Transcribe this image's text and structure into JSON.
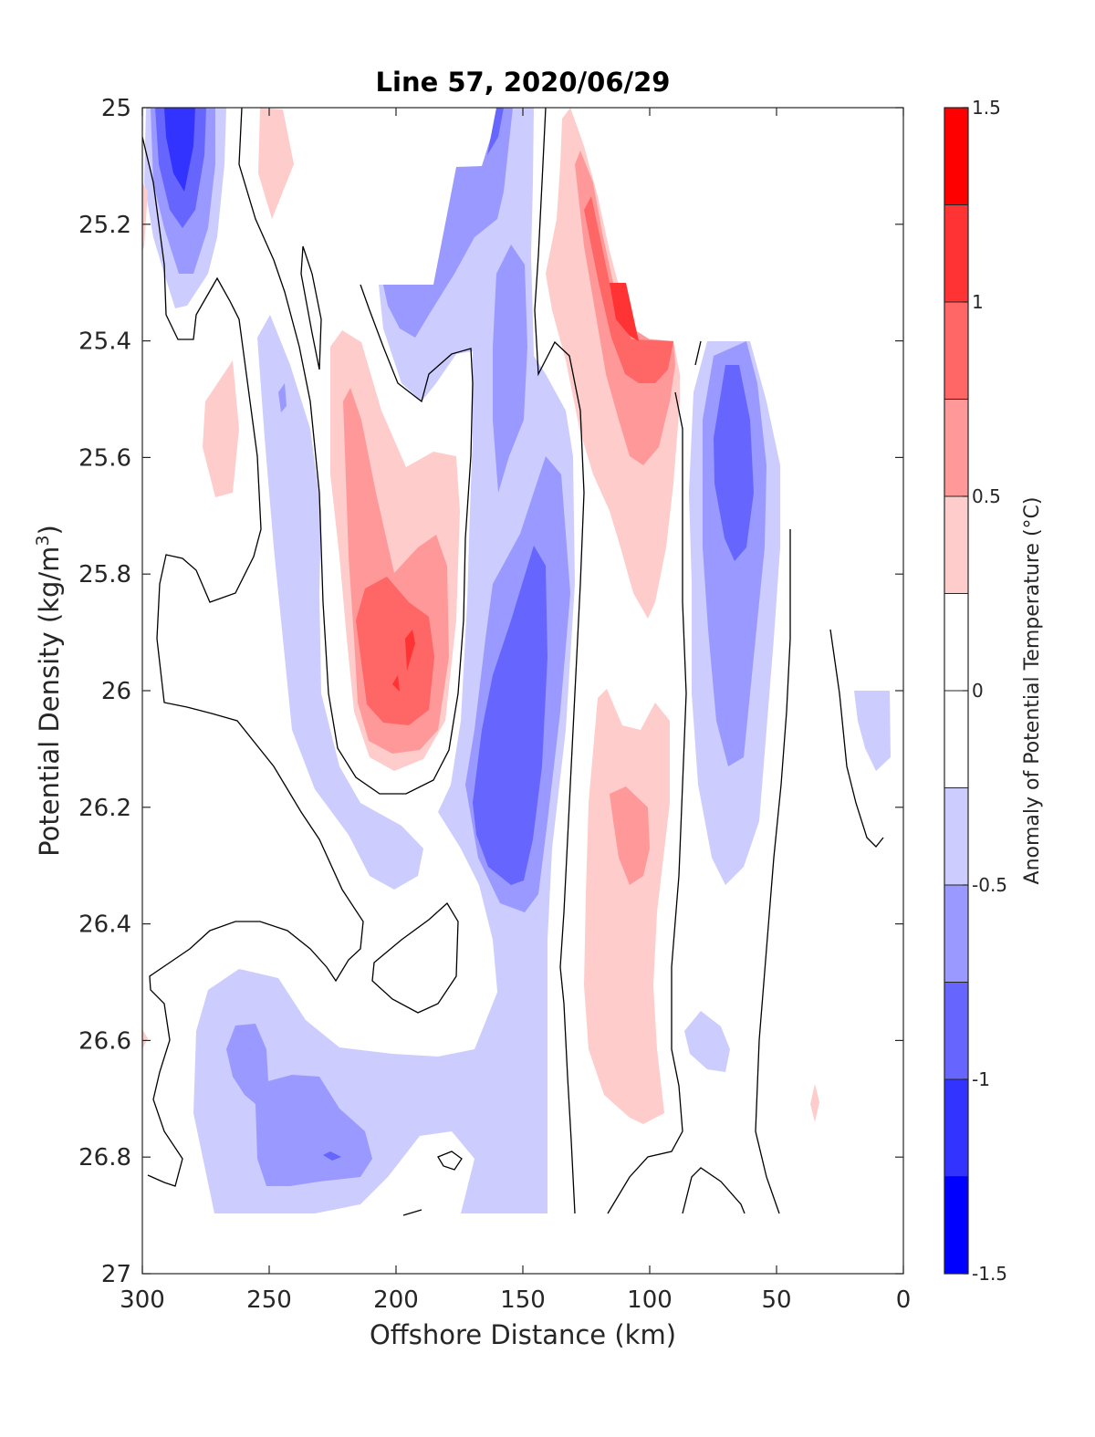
{
  "chart_data": {
    "type": "heatmap",
    "subtype": "filled-contour section",
    "title": "Line 57, 2020/06/29",
    "xlabel": "Offshore Distance (km)",
    "ylabel": "Potential Density (kg/m³)",
    "ylabel_parts": {
      "main": "Potential Density (kg/m",
      "sup": "3",
      "end": ")"
    },
    "xlim": [
      300,
      0
    ],
    "ylim": [
      25,
      27
    ],
    "y_reversed": true,
    "x_reversed": true,
    "xticks": [
      300,
      250,
      200,
      150,
      100,
      50,
      0
    ],
    "yticks": [
      25,
      25.2,
      25.4,
      25.6,
      25.8,
      26,
      26.2,
      26.4,
      26.6,
      26.8,
      27
    ],
    "ytick_labels": [
      "25",
      "25.2",
      "25.4",
      "25.6",
      "25.8",
      "26",
      "26.2",
      "26.4",
      "26.6",
      "26.8",
      "27"
    ],
    "grid": false,
    "colorbar": {
      "label": "Anomaly of Potential Temperature (°C)",
      "range": [
        -1.5,
        1.5
      ],
      "step": 0.25,
      "ticks": [
        1.5,
        1,
        0.5,
        0,
        -0.5,
        -1,
        -1.5
      ],
      "tick_labels": [
        "1.5",
        "1",
        "0.5",
        "0",
        "-0.5",
        "-1",
        "-1.5"
      ],
      "level_colors": [
        "#0000ff",
        "#3333ff",
        "#6666ff",
        "#9999ff",
        "#ccccff",
        "#ffffff",
        "#ffffff",
        "#ffcccc",
        "#ff9999",
        "#ff6666",
        "#ff3333",
        "#ff0000"
      ]
    },
    "features": [
      {
        "kind": "negative",
        "x": [
          292,
          278
        ],
        "y": [
          25.0,
          25.3
        ],
        "min": -1.25
      },
      {
        "kind": "positive",
        "x": [
          215,
          180
        ],
        "y": [
          25.4,
          26.15
        ],
        "max": 1.0
      },
      {
        "kind": "negative",
        "x": [
          170,
          135
        ],
        "y": [
          25.0,
          26.45
        ],
        "min": -1.0
      },
      {
        "kind": "positive",
        "x": [
          130,
          92
        ],
        "y": [
          25.0,
          25.7
        ],
        "max": 1.25
      },
      {
        "kind": "negative",
        "x": [
          85,
          50
        ],
        "y": [
          25.4,
          26.35
        ],
        "min": -1.0
      },
      {
        "kind": "positive",
        "x": [
          125,
          95
        ],
        "y": [
          26.0,
          26.75
        ],
        "max": 0.75
      },
      {
        "kind": "negative",
        "x": [
          270,
          200
        ],
        "y": [
          26.5,
          26.9
        ],
        "min": -0.75
      }
    ]
  }
}
